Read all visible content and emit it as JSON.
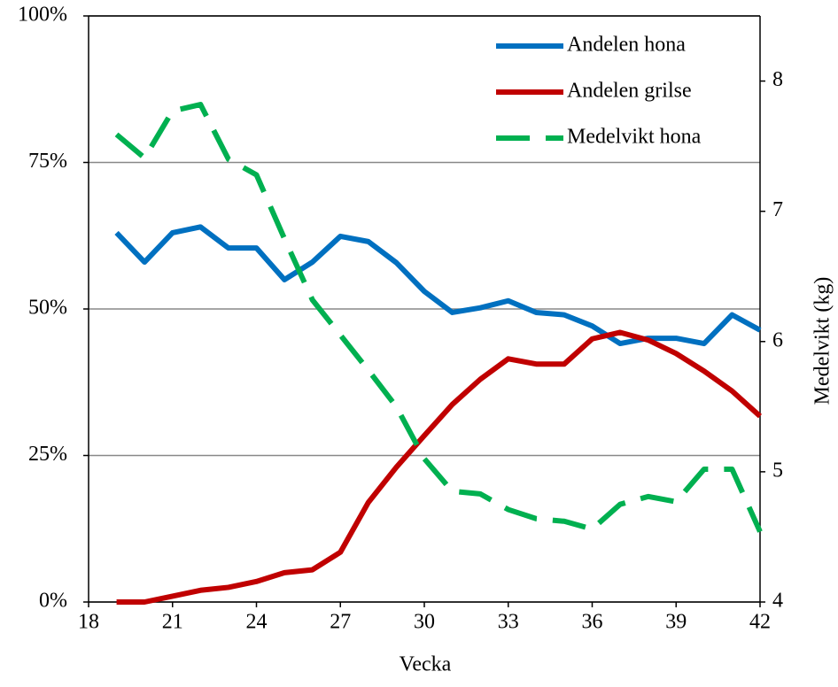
{
  "chart_data": {
    "type": "line",
    "xlabel": "Vecka",
    "y2label": "Medelvikt (kg)",
    "x": [
      19,
      20,
      21,
      22,
      23,
      24,
      25,
      26,
      27,
      28,
      29,
      30,
      31,
      32,
      33,
      34,
      35,
      36,
      37,
      38,
      39,
      40,
      41,
      42
    ],
    "series": [
      {
        "name": "Andelen hona",
        "color": "#0070c0",
        "dash": false,
        "values": [
          63,
          58,
          63,
          64,
          60.4,
          60.4,
          55,
          58,
          62.4,
          61.5,
          57.9,
          53,
          49.4,
          50.2,
          51.4,
          49.4,
          49,
          47.1,
          44.1,
          45,
          45,
          44.1,
          49,
          46.4
        ]
      },
      {
        "name": "Andelen grilse",
        "color": "#c00000",
        "dash": false,
        "values": [
          0,
          0,
          1,
          2,
          2.5,
          3.5,
          5,
          5.5,
          8.5,
          17,
          23,
          28.4,
          33.7,
          38,
          41.5,
          40.6,
          40.6,
          44.9,
          46,
          44.7,
          42.4,
          39.4,
          36,
          31.7
        ]
      },
      {
        "name": "Medelvikt hona",
        "color": "#00b050",
        "dash": true,
        "axis": "y2",
        "values": [
          7.59,
          7.41,
          7.77,
          7.82,
          7.4,
          7.28,
          6.79,
          6.32,
          6.05,
          5.78,
          5.5,
          5.1,
          4.85,
          4.83,
          4.71,
          4.64,
          4.62,
          4.56,
          4.75,
          4.81,
          4.77,
          5.02,
          5.02,
          4.54
        ]
      }
    ],
    "xlim": [
      18,
      42
    ],
    "xticks": [
      18,
      21,
      24,
      27,
      30,
      33,
      36,
      39,
      42
    ],
    "ylim": [
      0,
      100
    ],
    "yticks": [
      {
        "value": 0,
        "label": "0%"
      },
      {
        "value": 25,
        "label": "25%"
      },
      {
        "value": 50,
        "label": "50%"
      },
      {
        "value": 75,
        "label": "75%"
      },
      {
        "value": 100,
        "label": "100%"
      }
    ],
    "y2lim": [
      4,
      8.5
    ],
    "y2ticks": [
      4,
      5,
      6,
      7,
      8
    ],
    "grid": true,
    "legend": "upper right"
  }
}
